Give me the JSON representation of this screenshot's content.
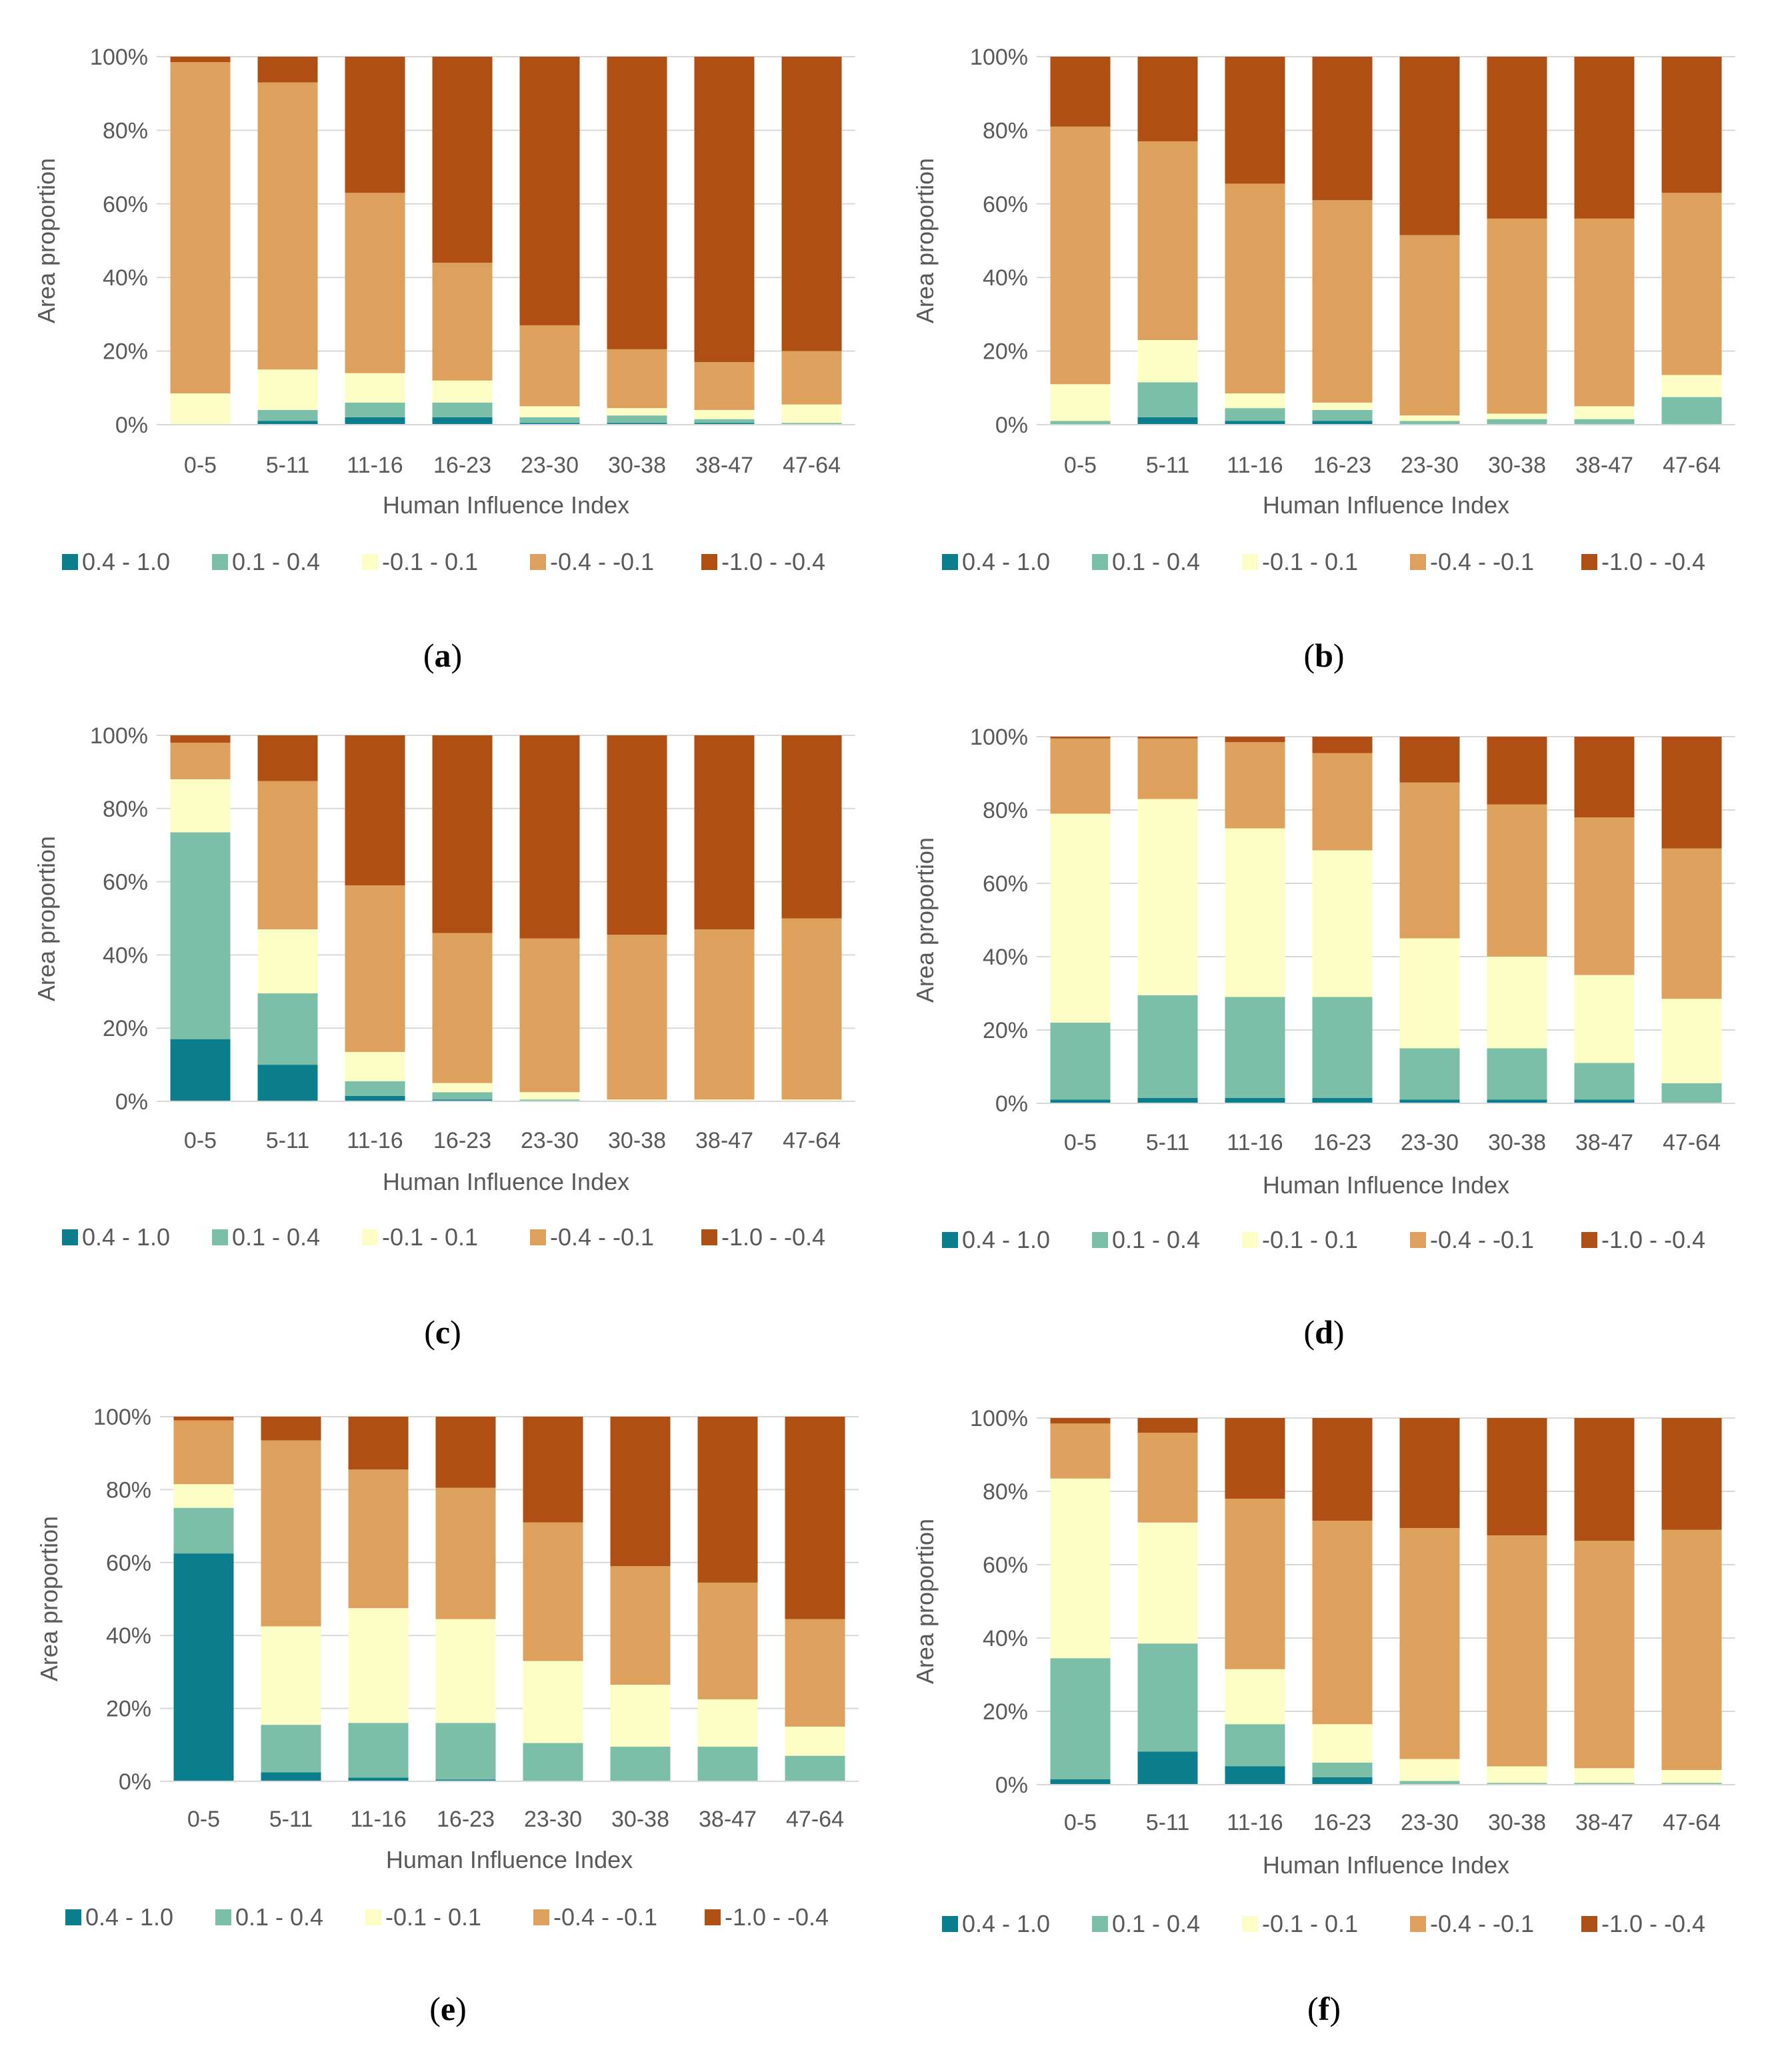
{
  "legend": {
    "items": [
      {
        "label": "0.4 - 1.0",
        "color": "#0b7e8e"
      },
      {
        "label": "0.1 - 0.4",
        "color": "#7bbfa8"
      },
      {
        "label": "-0.1 - 0.1",
        "color": "#fdfdc6"
      },
      {
        "label": "-0.4 - -0.1",
        "color": "#dda05d"
      },
      {
        "label": "-1.0 - -0.4",
        "color": "#b04f14"
      }
    ]
  },
  "chart_data": [
    {
      "type": "bar",
      "stacked": true,
      "panel": "a",
      "xlabel": "Human Influence Index",
      "ylabel": "Area proportion",
      "ylim": [
        0,
        100
      ],
      "yticks": [
        "0%",
        "20%",
        "40%",
        "60%",
        "80%",
        "100%"
      ],
      "categories": [
        "0-5",
        "5-11",
        "11-16",
        "16-23",
        "23-30",
        "30-38",
        "38-47",
        "47-64"
      ],
      "series": [
        {
          "name": "0.4 - 1.0",
          "values": [
            0,
            1,
            2,
            2,
            0.5,
            0.5,
            0.5,
            0
          ]
        },
        {
          "name": "0.1 - 0.4",
          "values": [
            0,
            3,
            4,
            4,
            1.5,
            2,
            1,
            0.5
          ]
        },
        {
          "name": "-0.1 - 0.1",
          "values": [
            8.5,
            11,
            8,
            6,
            3,
            2,
            2.5,
            5
          ]
        },
        {
          "name": "-0.4 - -0.1",
          "values": [
            90,
            78,
            49,
            32,
            22,
            16,
            13,
            14.5
          ]
        },
        {
          "name": "-1.0 - -0.4",
          "values": [
            1.5,
            7,
            37,
            56,
            73,
            79.5,
            83,
            80
          ]
        }
      ]
    },
    {
      "type": "bar",
      "stacked": true,
      "panel": "b",
      "xlabel": "Human Influence Index",
      "ylabel": "Area proportion",
      "ylim": [
        0,
        100
      ],
      "yticks": [
        "0%",
        "20%",
        "40%",
        "60%",
        "80%",
        "100%"
      ],
      "categories": [
        "0-5",
        "5-11",
        "11-16",
        "16-23",
        "23-30",
        "30-38",
        "38-47",
        "47-64"
      ],
      "series": [
        {
          "name": "0.4 - 1.0",
          "values": [
            0,
            2,
            1,
            1,
            0,
            0,
            0,
            0
          ]
        },
        {
          "name": "0.1 - 0.4",
          "values": [
            1,
            9.5,
            3.5,
            3,
            1,
            1.5,
            1.5,
            7.5
          ]
        },
        {
          "name": "-0.1 - 0.1",
          "values": [
            10,
            11.5,
            4,
            2,
            1.5,
            1.5,
            3.5,
            6
          ]
        },
        {
          "name": "-0.4 - -0.1",
          "values": [
            70,
            54,
            57,
            55,
            49,
            53,
            51,
            49.5
          ]
        },
        {
          "name": "-1.0 - -0.4",
          "values": [
            19,
            23,
            34.5,
            39,
            48.5,
            44,
            44,
            37
          ]
        }
      ]
    },
    {
      "type": "bar",
      "stacked": true,
      "panel": "c",
      "xlabel": "Human Influence Index",
      "ylabel": "Area proportion",
      "ylim": [
        0,
        100
      ],
      "yticks": [
        "0%",
        "20%",
        "40%",
        "60%",
        "80%",
        "100%"
      ],
      "categories": [
        "0-5",
        "5-11",
        "11-16",
        "16-23",
        "23-30",
        "30-38",
        "38-47",
        "47-64"
      ],
      "series": [
        {
          "name": "0.4 - 1.0",
          "values": [
            17,
            10,
            1.5,
            0.5,
            0,
            0,
            0,
            0
          ]
        },
        {
          "name": "0.1 - 0.4",
          "values": [
            56.5,
            19.5,
            4,
            2,
            0.5,
            0,
            0,
            0
          ]
        },
        {
          "name": "-0.1 - 0.1",
          "values": [
            14.5,
            17.5,
            8,
            2.5,
            2,
            0.5,
            0.5,
            0.5
          ]
        },
        {
          "name": "-0.4 - -0.1",
          "values": [
            10,
            40.5,
            45.5,
            41,
            42,
            45,
            46.5,
            49.5
          ]
        },
        {
          "name": "-1.0 - -0.4",
          "values": [
            2,
            12.5,
            41,
            54,
            55.5,
            54.5,
            53,
            50
          ]
        }
      ]
    },
    {
      "type": "bar",
      "stacked": true,
      "panel": "d",
      "xlabel": "Human Influence Index",
      "ylabel": "Area proportion",
      "ylim": [
        0,
        100
      ],
      "yticks": [
        "0%",
        "20%",
        "40%",
        "60%",
        "80%",
        "100%"
      ],
      "categories": [
        "0-5",
        "5-11",
        "11-16",
        "16-23",
        "23-30",
        "30-38",
        "38-47",
        "47-64"
      ],
      "series": [
        {
          "name": "0.4 - 1.0",
          "values": [
            1,
            1.5,
            1.5,
            1.5,
            1,
            1,
            1,
            0
          ]
        },
        {
          "name": "0.1 - 0.4",
          "values": [
            21,
            28,
            27.5,
            27.5,
            14,
            14,
            10,
            5.5
          ]
        },
        {
          "name": "-0.1 - 0.1",
          "values": [
            57,
            53.5,
            46,
            40,
            30,
            25,
            24,
            23
          ]
        },
        {
          "name": "-0.4 - -0.1",
          "values": [
            20.5,
            16.5,
            23.5,
            26.5,
            42.5,
            41.5,
            43,
            41
          ]
        },
        {
          "name": "-1.0 - -0.4",
          "values": [
            0.5,
            0.5,
            1.5,
            4.5,
            12.5,
            18.5,
            22,
            30.5
          ]
        }
      ]
    },
    {
      "type": "bar",
      "stacked": true,
      "panel": "e",
      "xlabel": "Human Influence Index",
      "ylabel": "Area proportion",
      "ylim": [
        0,
        100
      ],
      "yticks": [
        "0%",
        "20%",
        "40%",
        "60%",
        "80%",
        "100%"
      ],
      "categories": [
        "0-5",
        "5-11",
        "11-16",
        "16-23",
        "23-30",
        "30-38",
        "38-47",
        "47-64"
      ],
      "series": [
        {
          "name": "0.4 - 1.0",
          "values": [
            62.5,
            2.5,
            1,
            0.5,
            0,
            0,
            0,
            0
          ]
        },
        {
          "name": "0.1 - 0.4",
          "values": [
            12.5,
            13,
            15,
            15.5,
            10.5,
            9.5,
            9.5,
            7
          ]
        },
        {
          "name": "-0.1 - 0.1",
          "values": [
            6.5,
            27,
            31.5,
            28.5,
            22.5,
            17,
            13,
            8
          ]
        },
        {
          "name": "-0.4 - -0.1",
          "values": [
            17.5,
            51,
            38,
            36,
            38,
            32.5,
            32,
            29.5
          ]
        },
        {
          "name": "-1.0 - -0.4",
          "values": [
            1,
            6.5,
            14.5,
            19.5,
            29,
            41,
            45.5,
            55.5
          ]
        }
      ]
    },
    {
      "type": "bar",
      "stacked": true,
      "panel": "f",
      "xlabel": "Human Influence Index",
      "ylabel": "Area proportion",
      "ylim": [
        0,
        100
      ],
      "yticks": [
        "0%",
        "20%",
        "40%",
        "60%",
        "80%",
        "100%"
      ],
      "categories": [
        "0-5",
        "5-11",
        "11-16",
        "16-23",
        "23-30",
        "30-38",
        "38-47",
        "47-64"
      ],
      "series": [
        {
          "name": "0.4 - 1.0",
          "values": [
            1.5,
            9,
            5,
            2,
            0,
            0,
            0,
            0
          ]
        },
        {
          "name": "0.1 - 0.4",
          "values": [
            33,
            29.5,
            11.5,
            4,
            1,
            0.5,
            0.5,
            0.5
          ]
        },
        {
          "name": "-0.1 - 0.1",
          "values": [
            49,
            33,
            15,
            10.5,
            6,
            4.5,
            4,
            3.5
          ]
        },
        {
          "name": "-0.4 - -0.1",
          "values": [
            15,
            24.5,
            46.5,
            55.5,
            63,
            63,
            62,
            65.5
          ]
        },
        {
          "name": "-1.0 - -0.4",
          "values": [
            1.5,
            4,
            22,
            28,
            30,
            32,
            33.5,
            30.5
          ]
        }
      ]
    }
  ]
}
